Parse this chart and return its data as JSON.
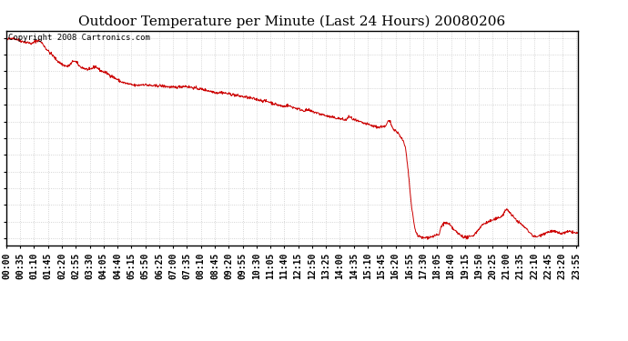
{
  "title": "Outdoor Temperature per Minute (Last 24 Hours) 20080206",
  "copyright_text": "Copyright 2008 Cartronics.com",
  "line_color": "#cc0000",
  "background_color": "#ffffff",
  "grid_color": "#c8c8c8",
  "border_color": "#000000",
  "yticks": [
    24.4,
    25.1,
    25.8,
    26.5,
    27.2,
    27.9,
    28.6,
    29.3,
    30.0,
    30.7,
    31.4,
    32.1,
    32.8
  ],
  "ylim": [
    24.1,
    33.1
  ],
  "title_fontsize": 11,
  "tick_fontsize": 7,
  "copyright_fontsize": 6.5,
  "xtick_step": 35,
  "noise_seed": 42
}
